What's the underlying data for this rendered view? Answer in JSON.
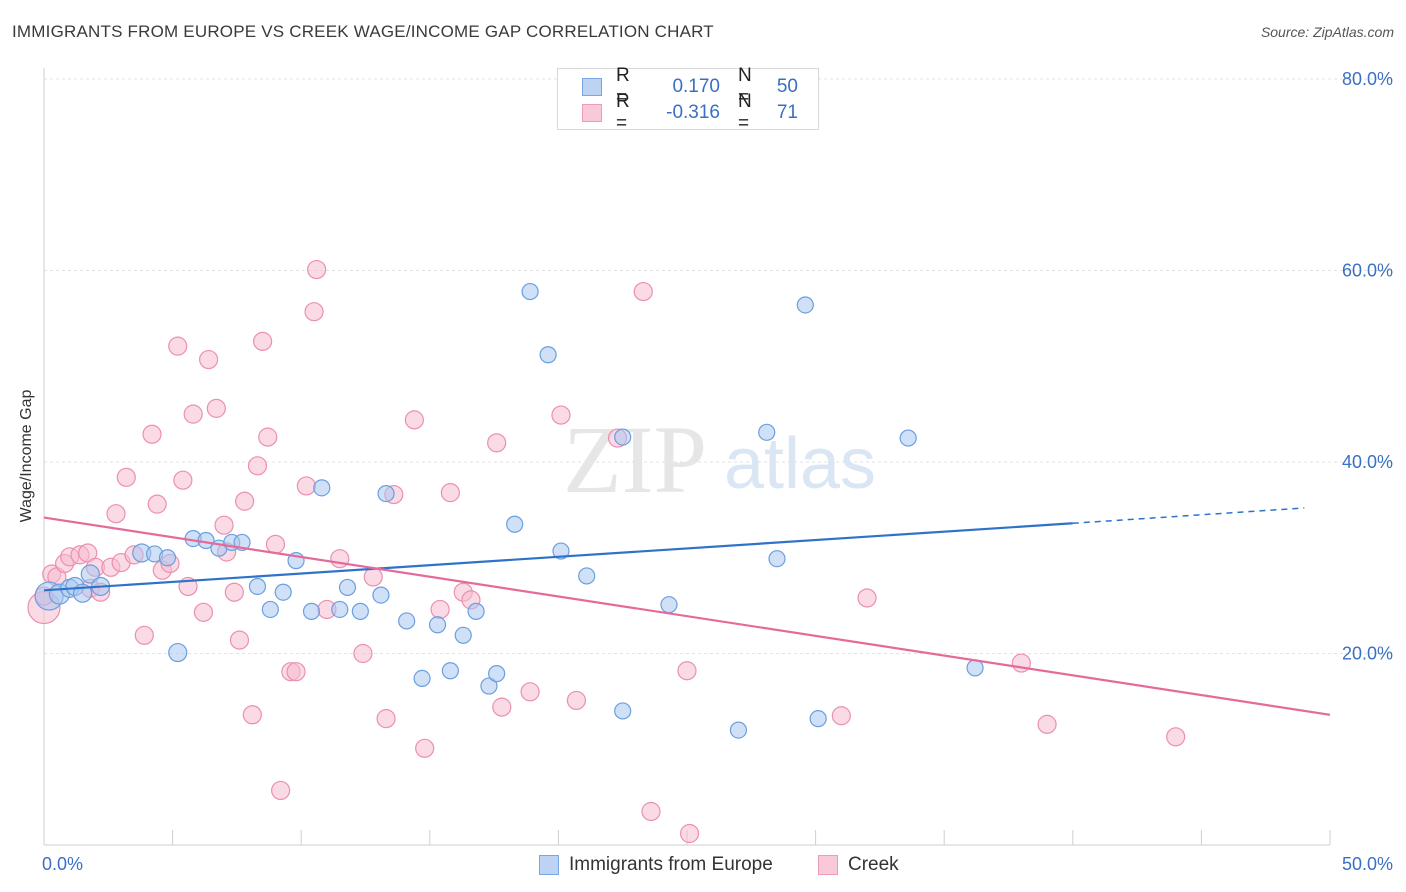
{
  "header": {
    "title": "IMMIGRANTS FROM EUROPE VS CREEK WAGE/INCOME GAP CORRELATION CHART",
    "source": "Source: ZipAtlas.com"
  },
  "colors": {
    "blue_fill": "#a9c6ef",
    "blue_stroke": "#6a9fe0",
    "blue_line": "#2f73c9",
    "pink_fill": "#f6bcd0",
    "pink_stroke": "#ec8fb0",
    "pink_line": "#e56a9a",
    "tick_text": "#3b6fc4",
    "grid": "#e2e2e2"
  },
  "legend": {
    "rows": [
      {
        "r_label": "R =",
        "r_value": "0.170",
        "n_label": "N =",
        "n_value": "50",
        "series": "blue"
      },
      {
        "r_label": "R =",
        "r_value": "-0.316",
        "n_label": "N =",
        "n_value": "71",
        "series": "pink"
      }
    ]
  },
  "watermark": {
    "zip": "ZIP",
    "atlas": "atlas"
  },
  "chart_data": {
    "type": "scatter",
    "title": "IMMIGRANTS FROM EUROPE VS CREEK WAGE/INCOME GAP CORRELATION CHART",
    "xlabel": "",
    "ylabel": "Wage/Income Gap",
    "xlim": [
      0,
      50
    ],
    "ylim": [
      0,
      80
    ],
    "x_tick_labels": [
      {
        "value": 0,
        "label": "0.0%"
      },
      {
        "value": 50,
        "label": "50.0%"
      }
    ],
    "y_tick_labels": [
      {
        "value": 20,
        "label": "20.0%"
      },
      {
        "value": 40,
        "label": "40.0%"
      },
      {
        "value": 60,
        "label": "60.0%"
      },
      {
        "value": 80,
        "label": "80.0%"
      }
    ],
    "series": [
      {
        "name": "Immigrants from Europe",
        "color": "blue",
        "r": 0.17,
        "n": 50,
        "trend": {
          "x0": 0,
          "y0": 26.6,
          "x1": 40,
          "y1": 33.6,
          "dash_to_x": 49,
          "dash_to_y": 35.2
        },
        "points": [
          [
            0.2,
            26.0
          ],
          [
            0.6,
            26.2
          ],
          [
            1.0,
            26.8
          ],
          [
            1.2,
            27.0
          ],
          [
            1.5,
            26.3
          ],
          [
            1.8,
            28.3
          ],
          [
            2.2,
            27.0
          ],
          [
            3.8,
            30.5
          ],
          [
            4.3,
            30.4
          ],
          [
            4.8,
            30.0
          ],
          [
            5.2,
            20.1
          ],
          [
            5.8,
            32.0
          ],
          [
            6.3,
            31.8
          ],
          [
            6.8,
            31.0
          ],
          [
            7.3,
            31.6
          ],
          [
            7.7,
            31.6
          ],
          [
            8.3,
            27.0
          ],
          [
            8.8,
            24.6
          ],
          [
            9.3,
            26.4
          ],
          [
            9.8,
            29.7
          ],
          [
            10.4,
            24.4
          ],
          [
            10.8,
            37.3
          ],
          [
            11.5,
            24.6
          ],
          [
            11.8,
            26.9
          ],
          [
            12.3,
            24.4
          ],
          [
            13.1,
            26.1
          ],
          [
            13.3,
            36.7
          ],
          [
            14.1,
            23.4
          ],
          [
            14.7,
            17.4
          ],
          [
            15.3,
            23.0
          ],
          [
            15.8,
            18.2
          ],
          [
            16.3,
            21.9
          ],
          [
            16.8,
            24.4
          ],
          [
            17.3,
            16.6
          ],
          [
            17.6,
            17.9
          ],
          [
            18.3,
            33.5
          ],
          [
            18.9,
            57.8
          ],
          [
            19.6,
            51.2
          ],
          [
            20.1,
            30.7
          ],
          [
            21.1,
            28.1
          ],
          [
            22.5,
            42.6
          ],
          [
            22.5,
            14.0
          ],
          [
            24.3,
            25.1
          ],
          [
            27.0,
            12.0
          ],
          [
            28.1,
            43.1
          ],
          [
            28.5,
            29.9
          ],
          [
            29.6,
            56.4
          ],
          [
            30.1,
            13.2
          ],
          [
            33.6,
            42.5
          ],
          [
            36.2,
            18.5
          ]
        ],
        "radius": [
          14,
          10,
          9,
          9,
          9,
          9,
          9,
          9,
          8,
          8,
          9,
          8,
          8,
          8,
          8,
          8,
          8,
          8,
          8,
          8,
          8,
          8,
          8,
          8,
          8,
          8,
          8,
          8,
          8,
          8,
          8,
          8,
          8,
          8,
          8,
          8,
          8,
          8,
          8,
          8,
          8,
          8,
          8,
          8,
          8,
          8,
          8,
          8,
          8,
          8
        ]
      },
      {
        "name": "Creek",
        "color": "pink",
        "r": -0.316,
        "n": 71,
        "trend": {
          "x0": 0,
          "y0": 34.2,
          "x1": 50,
          "y1": 13.6
        },
        "points": [
          [
            0.0,
            24.8
          ],
          [
            0.3,
            28.3
          ],
          [
            0.5,
            28.0
          ],
          [
            0.8,
            29.4
          ],
          [
            1.0,
            30.1
          ],
          [
            1.4,
            30.3
          ],
          [
            1.7,
            30.5
          ],
          [
            1.8,
            26.8
          ],
          [
            2.0,
            29.0
          ],
          [
            2.2,
            26.4
          ],
          [
            2.6,
            29.0
          ],
          [
            2.8,
            34.6
          ],
          [
            3.0,
            29.5
          ],
          [
            3.2,
            38.4
          ],
          [
            3.5,
            30.3
          ],
          [
            3.9,
            21.9
          ],
          [
            4.2,
            42.9
          ],
          [
            4.4,
            35.6
          ],
          [
            4.6,
            28.7
          ],
          [
            4.9,
            29.4
          ],
          [
            5.2,
            52.1
          ],
          [
            5.4,
            38.1
          ],
          [
            5.6,
            27.0
          ],
          [
            5.8,
            45.0
          ],
          [
            6.2,
            24.3
          ],
          [
            6.4,
            50.7
          ],
          [
            6.7,
            45.6
          ],
          [
            7.0,
            33.4
          ],
          [
            7.1,
            30.6
          ],
          [
            7.4,
            26.4
          ],
          [
            7.6,
            21.4
          ],
          [
            7.8,
            35.9
          ],
          [
            8.1,
            13.6
          ],
          [
            8.3,
            39.6
          ],
          [
            8.5,
            52.6
          ],
          [
            8.7,
            42.6
          ],
          [
            9.0,
            31.4
          ],
          [
            9.2,
            5.7
          ],
          [
            9.6,
            18.1
          ],
          [
            9.8,
            18.1
          ],
          [
            10.2,
            37.5
          ],
          [
            10.5,
            55.7
          ],
          [
            10.6,
            60.1
          ],
          [
            11.0,
            24.6
          ],
          [
            11.5,
            29.9
          ],
          [
            12.4,
            20.0
          ],
          [
            12.8,
            28.0
          ],
          [
            13.3,
            13.2
          ],
          [
            13.6,
            36.6
          ],
          [
            14.4,
            44.4
          ],
          [
            14.8,
            10.1
          ],
          [
            15.4,
            24.6
          ],
          [
            15.8,
            36.8
          ],
          [
            16.3,
            26.4
          ],
          [
            16.6,
            25.6
          ],
          [
            17.6,
            42.0
          ],
          [
            17.8,
            14.4
          ],
          [
            18.9,
            16.0
          ],
          [
            20.1,
            44.9
          ],
          [
            20.7,
            15.1
          ],
          [
            22.3,
            42.5
          ],
          [
            23.3,
            57.8
          ],
          [
            23.6,
            3.5
          ],
          [
            25.0,
            18.2
          ],
          [
            25.1,
            1.2
          ],
          [
            31.0,
            13.5
          ],
          [
            32.0,
            25.8
          ],
          [
            38.0,
            19.0
          ],
          [
            39.0,
            12.6
          ],
          [
            44.0,
            11.3
          ],
          [
            0.0,
            26.0
          ]
        ],
        "radius": [
          16,
          9,
          9,
          9,
          9,
          9,
          9,
          9,
          9,
          9,
          9,
          9,
          9,
          9,
          9,
          9,
          9,
          9,
          9,
          9,
          9,
          9,
          9,
          9,
          9,
          9,
          9,
          9,
          9,
          9,
          9,
          9,
          9,
          9,
          9,
          9,
          9,
          9,
          9,
          9,
          9,
          9,
          9,
          9,
          9,
          9,
          9,
          9,
          9,
          9,
          9,
          9,
          9,
          9,
          9,
          9,
          9,
          9,
          9,
          9,
          9,
          9,
          9,
          9,
          9,
          9,
          9,
          9,
          9,
          9,
          9
        ]
      }
    ]
  }
}
